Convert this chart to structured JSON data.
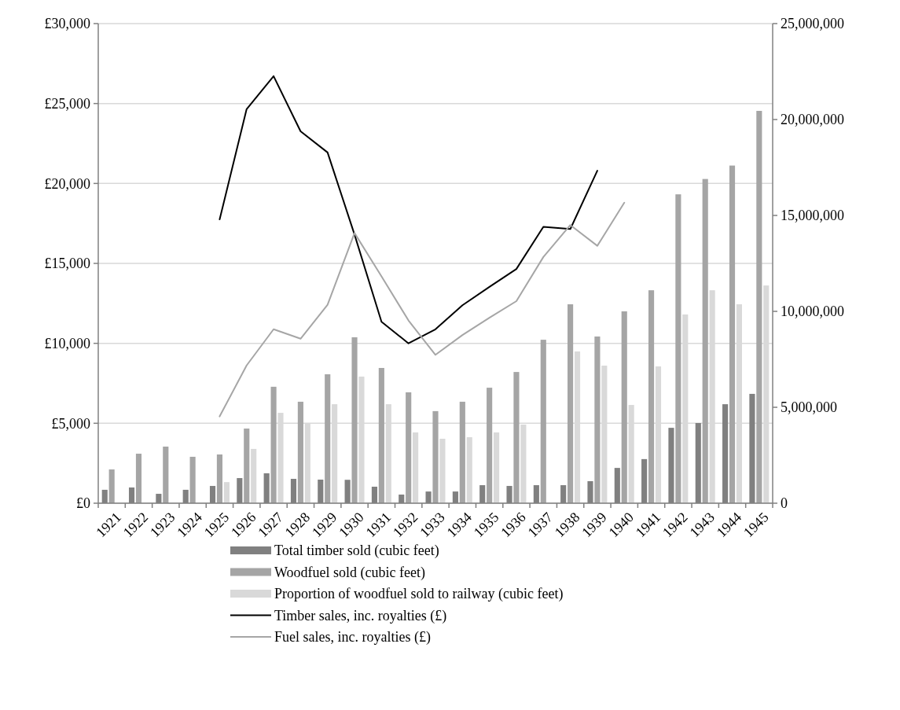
{
  "chart_data": {
    "type": "bar",
    "categories": [
      "1921",
      "1922",
      "1923",
      "1924",
      "1925",
      "1926",
      "1927",
      "1928",
      "1929",
      "1930",
      "1931",
      "1932",
      "1933",
      "1934",
      "1935",
      "1936",
      "1937",
      "1938",
      "1939",
      "1940",
      "1941",
      "1942",
      "1943",
      "1944",
      "1945"
    ],
    "series": [
      {
        "name": "Total timber sold (cubic feet)",
        "axis": "y2",
        "color": "#808080",
        "values": [
          700000,
          820000,
          490000,
          700000,
          900000,
          1310000,
          1560000,
          1270000,
          1230000,
          1220000,
          860000,
          450000,
          610000,
          610000,
          940000,
          900000,
          940000,
          940000,
          1150000,
          1840000,
          2300000,
          3930000,
          4180000,
          5160000,
          5700000
        ]
      },
      {
        "name": "Woodfuel sold (cubic feet)",
        "axis": "y2",
        "color": "#a5a5a5",
        "values": [
          1760000,
          2580000,
          2950000,
          2420000,
          2540000,
          3890000,
          6070000,
          5290000,
          6720000,
          8650000,
          7050000,
          5780000,
          4800000,
          5290000,
          6020000,
          6840000,
          8520000,
          10370000,
          8690000,
          10000000,
          11100000,
          16100000,
          16900000,
          17600000,
          20450000
        ]
      },
      {
        "name": "Proportion of woodfuel sold to railway (cubic feet)",
        "axis": "y2",
        "color": "#d9d9d9",
        "values": [
          null,
          null,
          null,
          null,
          1100000,
          2830000,
          4710000,
          4180000,
          5160000,
          6600000,
          5160000,
          3690000,
          3360000,
          3440000,
          3690000,
          4100000,
          null,
          7910000,
          7170000,
          5120000,
          7130000,
          9840000,
          11100000,
          10370000,
          11350000
        ]
      },
      {
        "name": "Timber sales, inc. royalties (£)",
        "type": "line",
        "color": "#000000",
        "values": [
          null,
          null,
          null,
          null,
          17750,
          24650,
          26710,
          23260,
          21940,
          16800,
          11350,
          10000,
          10880,
          12380,
          13530,
          14650,
          17290,
          17150,
          20800,
          null,
          null,
          null,
          null,
          null,
          null
        ]
      },
      {
        "name": "Fuel sales, inc. royalties (£)",
        "type": "line",
        "color": "#a6a6a6",
        "values": [
          null,
          null,
          null,
          null,
          5430,
          8620,
          10880,
          10290,
          12410,
          16900,
          14190,
          11430,
          9280,
          10520,
          11600,
          12640,
          15400,
          17400,
          16100,
          18800,
          null,
          null,
          null,
          null,
          null
        ]
      }
    ],
    "ylim": [
      0,
      30000
    ],
    "yticks": [
      {
        "value": 0,
        "label": "£0"
      },
      {
        "value": 5000,
        "label": "£5,000"
      },
      {
        "value": 10000,
        "label": "£10,000"
      },
      {
        "value": 15000,
        "label": "£15,000"
      },
      {
        "value": 20000,
        "label": "£20,000"
      },
      {
        "value": 25000,
        "label": "£25,000"
      },
      {
        "value": 30000,
        "label": "£30,000"
      }
    ],
    "y2lim": [
      0,
      25000000
    ],
    "y2ticks": [
      {
        "value": 0,
        "label": "0"
      },
      {
        "value": 5000000,
        "label": "5,000,000"
      },
      {
        "value": 10000000,
        "label": "10,000,000"
      },
      {
        "value": 15000000,
        "label": "15,000,000"
      },
      {
        "value": 20000000,
        "label": "20,000,000"
      },
      {
        "value": 25000000,
        "label": "25,000,000"
      }
    ],
    "grid": "y",
    "legend": "bottom"
  }
}
